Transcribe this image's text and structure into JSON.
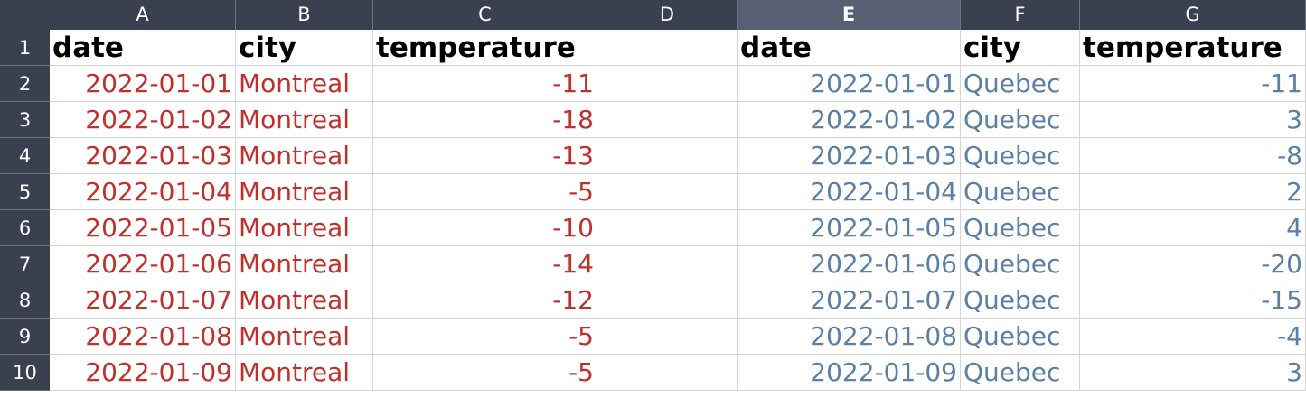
{
  "sheet": {
    "columns": [
      "A",
      "B",
      "C",
      "D",
      "E",
      "F",
      "G"
    ],
    "selected_column": "E",
    "row_numbers": [
      "1",
      "2",
      "3",
      "4",
      "5",
      "6",
      "7",
      "8",
      "9",
      "10"
    ],
    "colors": {
      "montreal_text": "#c0302c",
      "quebec_text": "#5b80a8",
      "header_bg": "#3a4050",
      "selected_header_bg": "#575f72"
    },
    "left_table": {
      "headers": [
        "date",
        "city",
        "temperature"
      ],
      "rows": [
        [
          "2022-01-01",
          "Montreal",
          "-11"
        ],
        [
          "2022-01-02",
          "Montreal",
          "-18"
        ],
        [
          "2022-01-03",
          "Montreal",
          "-13"
        ],
        [
          "2022-01-04",
          "Montreal",
          "-5"
        ],
        [
          "2022-01-05",
          "Montreal",
          "-10"
        ],
        [
          "2022-01-06",
          "Montreal",
          "-14"
        ],
        [
          "2022-01-07",
          "Montreal",
          "-12"
        ],
        [
          "2022-01-08",
          "Montreal",
          "-5"
        ],
        [
          "2022-01-09",
          "Montreal",
          "-5"
        ]
      ]
    },
    "right_table": {
      "headers": [
        "date",
        "city",
        "temperature"
      ],
      "rows": [
        [
          "2022-01-01",
          "Quebec",
          "-11"
        ],
        [
          "2022-01-02",
          "Quebec",
          "3"
        ],
        [
          "2022-01-03",
          "Quebec",
          "-8"
        ],
        [
          "2022-01-04",
          "Quebec",
          "2"
        ],
        [
          "2022-01-05",
          "Quebec",
          "4"
        ],
        [
          "2022-01-06",
          "Quebec",
          "-20"
        ],
        [
          "2022-01-07",
          "Quebec",
          "-15"
        ],
        [
          "2022-01-08",
          "Quebec",
          "-4"
        ],
        [
          "2022-01-09",
          "Quebec",
          "3"
        ]
      ]
    }
  }
}
